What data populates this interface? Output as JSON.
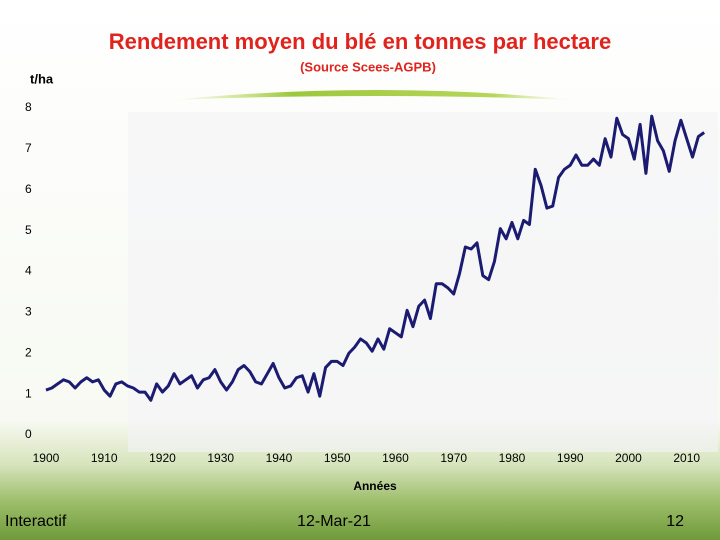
{
  "chart_data": {
    "type": "line",
    "title": "Rendement moyen du blé en tonnes par hectare",
    "subtitle": "(Source  Scees-AGPB)",
    "y_label": "t/ha",
    "x_label": "Années",
    "color": "#1b1b72",
    "x": [
      1900,
      1901,
      1902,
      1903,
      1904,
      1905,
      1906,
      1907,
      1908,
      1909,
      1910,
      1911,
      1912,
      1913,
      1914,
      1915,
      1916,
      1917,
      1918,
      1919,
      1920,
      1921,
      1922,
      1923,
      1924,
      1925,
      1926,
      1927,
      1928,
      1929,
      1930,
      1931,
      1932,
      1933,
      1934,
      1935,
      1936,
      1937,
      1938,
      1939,
      1940,
      1941,
      1942,
      1943,
      1944,
      1945,
      1946,
      1947,
      1948,
      1949,
      1950,
      1951,
      1952,
      1953,
      1954,
      1955,
      1956,
      1957,
      1958,
      1959,
      1960,
      1961,
      1962,
      1963,
      1964,
      1965,
      1966,
      1967,
      1968,
      1969,
      1970,
      1971,
      1972,
      1973,
      1974,
      1975,
      1976,
      1977,
      1978,
      1979,
      1980,
      1981,
      1982,
      1983,
      1984,
      1985,
      1986,
      1987,
      1988,
      1989,
      1990,
      1991,
      1992,
      1993,
      1994,
      1995,
      1996,
      1997,
      1998,
      1999,
      2000,
      2001,
      2002,
      2003,
      2004,
      2005,
      2006,
      2007,
      2008,
      2009,
      2010,
      2011,
      2012,
      2013
    ],
    "values": [
      1.1,
      1.15,
      1.25,
      1.35,
      1.3,
      1.15,
      1.3,
      1.4,
      1.3,
      1.35,
      1.1,
      0.95,
      1.25,
      1.3,
      1.2,
      1.15,
      1.05,
      1.05,
      0.85,
      1.25,
      1.05,
      1.2,
      1.5,
      1.25,
      1.35,
      1.45,
      1.15,
      1.35,
      1.4,
      1.6,
      1.3,
      1.1,
      1.3,
      1.6,
      1.7,
      1.55,
      1.3,
      1.25,
      1.5,
      1.75,
      1.4,
      1.15,
      1.2,
      1.4,
      1.45,
      1.05,
      1.5,
      0.95,
      1.65,
      1.8,
      1.8,
      1.7,
      2.0,
      2.15,
      2.35,
      2.25,
      2.05,
      2.35,
      2.1,
      2.6,
      2.5,
      2.4,
      3.05,
      2.65,
      3.15,
      3.3,
      2.85,
      3.7,
      3.7,
      3.6,
      3.45,
      3.95,
      4.6,
      4.55,
      4.7,
      3.9,
      3.8,
      4.25,
      5.05,
      4.8,
      5.2,
      4.8,
      5.25,
      5.15,
      6.5,
      6.1,
      5.55,
      5.6,
      6.3,
      6.5,
      6.6,
      6.85,
      6.6,
      6.6,
      6.75,
      6.6,
      7.25,
      6.8,
      7.75,
      7.35,
      7.25,
      6.75,
      7.6,
      6.4,
      7.8,
      7.2,
      6.95,
      6.45,
      7.2,
      7.7,
      7.25,
      6.8,
      7.3,
      7.4
    ],
    "xlim": [
      1897,
      2014
    ],
    "xticks": [
      1900,
      1910,
      1920,
      1930,
      1940,
      1950,
      1960,
      1970,
      1980,
      1990,
      2000,
      2010
    ],
    "ylim": [
      0,
      8
    ],
    "yticks": [
      0,
      1,
      2,
      3,
      4,
      5,
      6,
      7,
      8
    ],
    "grid": false
  },
  "footer": {
    "left": "Interactif",
    "center": "12-Mar-21",
    "right": "12"
  }
}
